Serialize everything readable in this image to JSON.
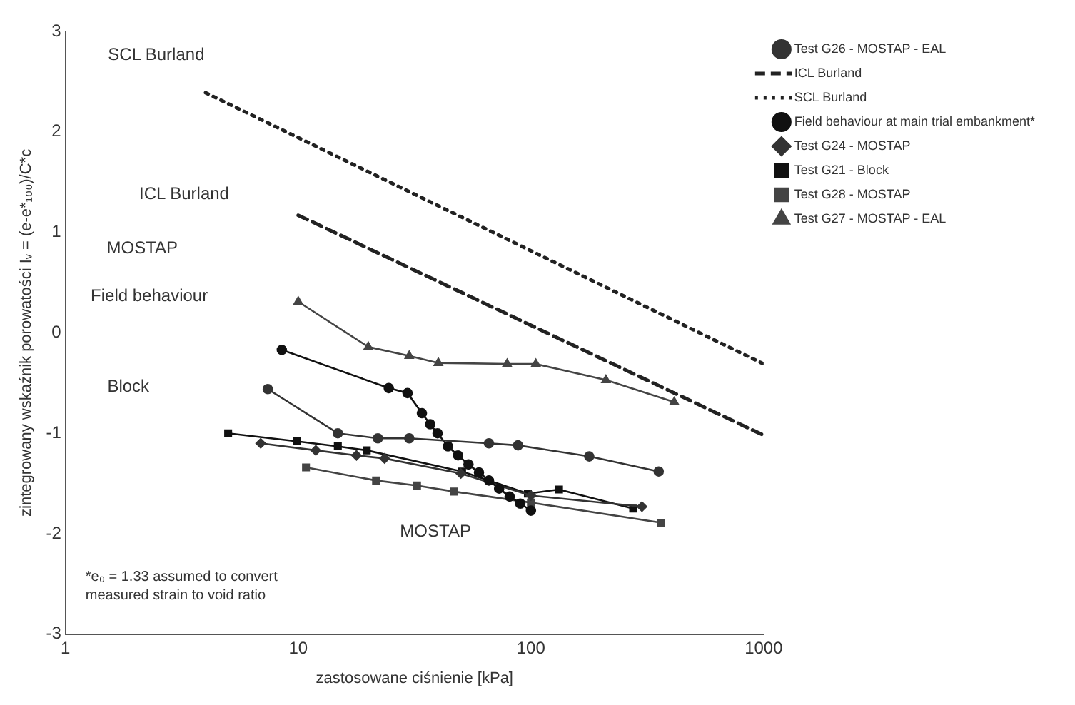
{
  "chart_data": {
    "type": "line",
    "xlabel": "zastosowane ciśnienie [kPa]",
    "ylabel": "zintegrowany wskaźnik porowatości Iᵥ = (e-e*₁₀₀)/C*c",
    "log": "x",
    "xlim": [
      1,
      1000
    ],
    "xticks": [
      1,
      10,
      100,
      1000
    ],
    "ylim": [
      -3,
      3
    ],
    "yticks": [
      -3,
      -2,
      -1,
      0,
      1,
      2,
      3
    ],
    "grid": false,
    "legend": "top right",
    "series": [
      {
        "name": "Test G26 - MOSTAP - EAL",
        "color": "#333333",
        "marker": "circle",
        "line_style": "solid",
        "x": [
          7.4,
          14.8,
          22,
          30,
          66,
          88,
          178,
          354
        ],
        "values": [
          -0.56,
          -1.0,
          -1.05,
          -1.05,
          -1.1,
          -1.12,
          -1.23,
          -1.38
        ]
      },
      {
        "name": "ICL Burland",
        "color": "#222222",
        "marker": "none",
        "line_style": "dashed",
        "x": [
          10,
          1000
        ],
        "values": [
          1.17,
          -1.02
        ]
      },
      {
        "name": "SCL Burland",
        "color": "#222222",
        "marker": "none",
        "line_style": "dotted",
        "x": [
          4,
          1000
        ],
        "values": [
          2.39,
          -0.31
        ]
      },
      {
        "name": "Field behaviour at main trial embankment*",
        "color": "#111111",
        "marker": "circle",
        "line_style": "solid",
        "x": [
          8.5,
          24.5,
          29.5,
          34,
          36.9,
          39.7,
          44,
          48.6,
          53.9,
          59.8,
          66,
          73,
          81,
          90,
          100
        ],
        "values": [
          -0.17,
          -0.55,
          -0.6,
          -0.8,
          -0.91,
          -1.0,
          -1.13,
          -1.22,
          -1.31,
          -1.39,
          -1.47,
          -1.55,
          -1.63,
          -1.7,
          -1.77
        ]
      },
      {
        "name": "Test G24 - MOSTAP",
        "color": "#333333",
        "marker": "diamond",
        "line_style": "solid",
        "x": [
          6.9,
          11.9,
          17.8,
          23.5,
          50,
          100,
          300
        ],
        "values": [
          -1.1,
          -1.17,
          -1.22,
          -1.25,
          -1.4,
          -1.62,
          -1.73
        ]
      },
      {
        "name": "Test G21 - Block",
        "color": "#111111",
        "marker": "square",
        "line_style": "solid",
        "x": [
          5,
          9.9,
          14.8,
          19.7,
          50.6,
          97,
          132,
          275
        ],
        "values": [
          -1.0,
          -1.08,
          -1.13,
          -1.17,
          -1.38,
          -1.6,
          -1.56,
          -1.75
        ]
      },
      {
        "name": "Test G28 - MOSTAP",
        "color": "#444444",
        "marker": "square",
        "line_style": "solid",
        "x": [
          10.8,
          21.6,
          32.4,
          46.7,
          100,
          362
        ],
        "values": [
          -1.34,
          -1.47,
          -1.52,
          -1.58,
          -1.69,
          -1.89
        ]
      },
      {
        "name": "Test G27 - MOSTAP - EAL",
        "color": "#444444",
        "marker": "triangle",
        "line_style": "solid",
        "x": [
          10,
          20,
          30,
          40,
          79,
          105,
          210,
          413
        ],
        "values": [
          0.31,
          -0.14,
          -0.23,
          -0.3,
          -0.31,
          -0.31,
          -0.47,
          -0.69
        ]
      }
    ],
    "annotations": [
      "SCL Burland",
      "ICL Burland",
      "MOSTAP",
      "Field behaviour",
      "Block",
      "MOSTAP",
      "*e₀ = 1.33 assumed to convert measured strain to void ratio"
    ]
  }
}
